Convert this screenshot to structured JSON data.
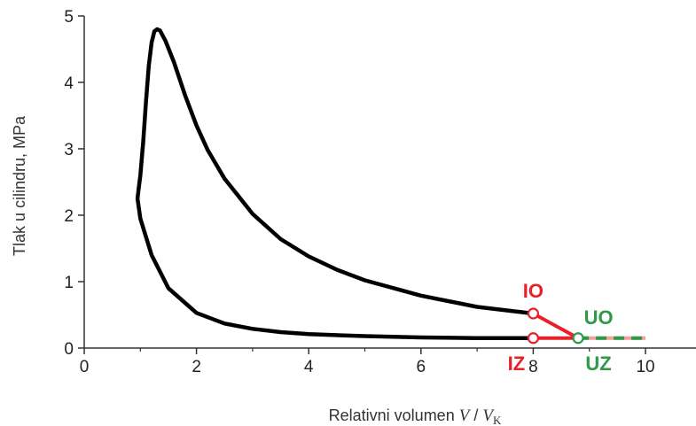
{
  "chart_data": {
    "type": "line",
    "title": "",
    "xlabel_text": "Relativni volumen ",
    "xlabel_v": "V",
    "xlabel_sep": " / ",
    "xlabel_vk": "V",
    "xlabel_sub": "K",
    "ylabel": "Tlak  u cilindru, MPa",
    "xlim": [
      0,
      10.9
    ],
    "ylim": [
      0,
      5
    ],
    "xticks": [
      0,
      2,
      4,
      6,
      8,
      10
    ],
    "yticks": [
      0,
      1,
      2,
      3,
      4,
      5
    ],
    "grid": false,
    "series": [
      {
        "color": "#000000",
        "x": [
          8.0,
          7.0,
          6.0,
          5.0,
          4.5,
          4.0,
          3.5,
          3.0,
          2.5,
          2.2,
          2.0,
          1.8,
          1.6,
          1.45,
          1.35,
          1.3,
          1.25,
          1.2,
          1.15,
          1.1,
          1.05,
          1.0,
          0.97,
          0.95,
          1.0,
          1.2,
          1.5,
          2.0,
          2.5,
          3.0,
          3.5,
          4.0,
          5.0,
          6.0,
          7.0,
          8.0
        ],
        "y": [
          0.52,
          0.62,
          0.79,
          1.02,
          1.18,
          1.38,
          1.64,
          2.02,
          2.55,
          2.98,
          3.35,
          3.8,
          4.3,
          4.62,
          4.78,
          4.8,
          4.77,
          4.6,
          4.25,
          3.7,
          3.1,
          2.6,
          2.4,
          2.25,
          1.95,
          1.4,
          0.9,
          0.53,
          0.37,
          0.29,
          0.24,
          0.21,
          0.18,
          0.16,
          0.15,
          0.15
        ]
      },
      {
        "color": "#e8202a",
        "x": [
          8.0,
          8.8
        ],
        "y": [
          0.52,
          0.15
        ]
      },
      {
        "color": "#e8202a",
        "x": [
          8.0,
          8.8
        ],
        "y": [
          0.15,
          0.15
        ]
      },
      {
        "color": "#2e9a47",
        "dashed_with": "#f2a0a0",
        "x": [
          8.8,
          10.0
        ],
        "y": [
          0.15,
          0.15
        ]
      }
    ],
    "markers": [
      {
        "x": 8.0,
        "y": 0.52,
        "color": "#e8202a"
      },
      {
        "x": 8.0,
        "y": 0.15,
        "color": "#e8202a"
      },
      {
        "x": 8.8,
        "y": 0.15,
        "color": "#2e9a47"
      }
    ],
    "annotations": [
      {
        "text": "IO",
        "x": 8.0,
        "y": 0.52,
        "color": "#e8202a",
        "pos": "above"
      },
      {
        "text": "IZ",
        "x": 8.0,
        "y": 0.15,
        "color": "#e8202a",
        "pos": "below-left"
      },
      {
        "text": "UO",
        "x": 8.8,
        "y": 0.15,
        "color": "#2e9a47",
        "pos": "above-right"
      },
      {
        "text": "UZ",
        "x": 8.8,
        "y": 0.15,
        "color": "#2e9a47",
        "pos": "below-right"
      }
    ]
  }
}
